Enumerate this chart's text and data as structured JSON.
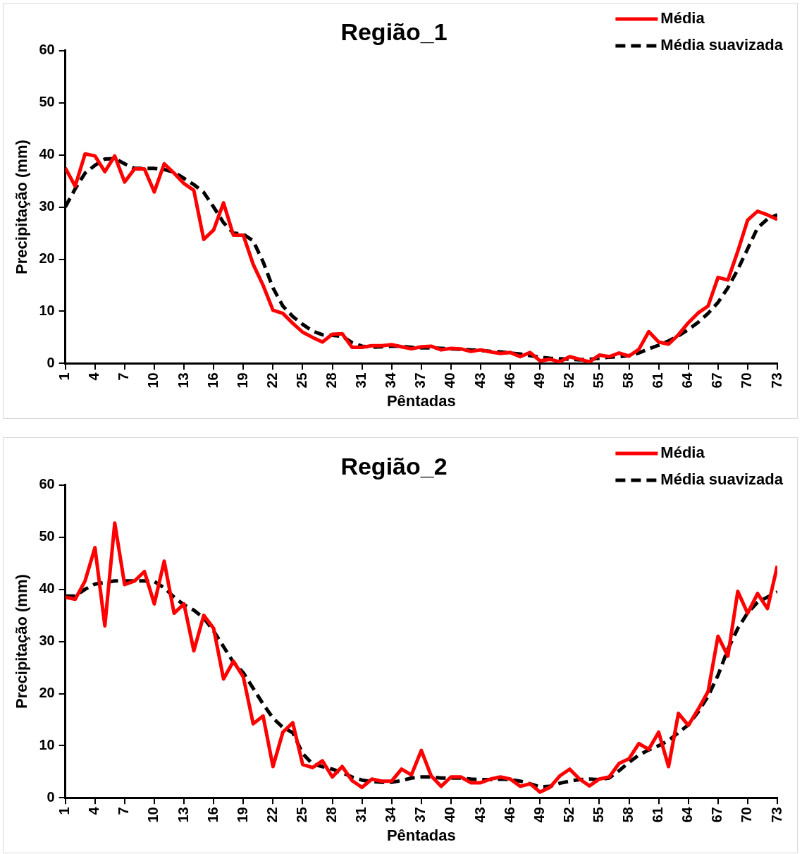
{
  "chart_data": [
    {
      "type": "line",
      "title": "Região_1",
      "xlabel": "Pêntadas",
      "ylabel": "Precipitação (mm)",
      "x": [
        1,
        2,
        3,
        4,
        5,
        6,
        7,
        8,
        9,
        10,
        11,
        12,
        13,
        14,
        15,
        16,
        17,
        18,
        19,
        20,
        21,
        22,
        23,
        24,
        25,
        26,
        27,
        28,
        29,
        30,
        31,
        32,
        33,
        34,
        35,
        36,
        37,
        38,
        39,
        40,
        41,
        42,
        43,
        44,
        45,
        46,
        47,
        48,
        49,
        50,
        51,
        52,
        53,
        54,
        55,
        56,
        57,
        58,
        59,
        60,
        61,
        62,
        63,
        64,
        65,
        66,
        67,
        68,
        69,
        70,
        71,
        72,
        73
      ],
      "xlim": [
        1,
        73
      ],
      "xticks": [
        1,
        4,
        7,
        10,
        13,
        16,
        19,
        22,
        25,
        28,
        31,
        34,
        37,
        40,
        43,
        46,
        49,
        52,
        55,
        58,
        61,
        64,
        67,
        70,
        73
      ],
      "ylim": [
        0,
        60
      ],
      "yticks": [
        0,
        10,
        20,
        30,
        40,
        50,
        60
      ],
      "grid": false,
      "legend": "top right",
      "series": [
        {
          "name": "Média",
          "color": "#ff0000",
          "line_style": "solid",
          "values": [
            37.5,
            34,
            40.2,
            39.8,
            36.8,
            39.8,
            34.8,
            37.3,
            37.3,
            32.9,
            38.3,
            36.5,
            34.5,
            33.2,
            23.8,
            25.6,
            30.8,
            24.6,
            24.6,
            19,
            15,
            10.2,
            9.6,
            7.7,
            6,
            5,
            4.1,
            5.6,
            5.7,
            3.1,
            3.1,
            3.4,
            3.4,
            3.6,
            3.2,
            2.8,
            3.2,
            3.3,
            2.6,
            2.9,
            2.8,
            2.3,
            2.6,
            2.2,
            1.9,
            2.1,
            1.3,
            2.1,
            0.5,
            0.8,
            0.3,
            1.3,
            0.8,
            0.3,
            1.6,
            1.3,
            2,
            1.4,
            2.7,
            6.1,
            4.1,
            3.7,
            5.5,
            7.8,
            9.7,
            11,
            16.5,
            16,
            21.5,
            27.5,
            29.2,
            28.5,
            27.6
          ]
        },
        {
          "name": "Média suavizada",
          "color": "#000000",
          "line_style": "dashed",
          "values": [
            30,
            33.5,
            36.5,
            38,
            39.2,
            39.3,
            38.3,
            37.4,
            37.4,
            37.4,
            37.2,
            36.7,
            35.5,
            34.3,
            32.8,
            30,
            27,
            25,
            24.8,
            23.5,
            19.5,
            14.5,
            11,
            9,
            7.5,
            6.2,
            5.5,
            5.4,
            5.2,
            4,
            3.3,
            3.1,
            3.2,
            3.3,
            3.3,
            3.1,
            3,
            3,
            2.9,
            2.8,
            2.7,
            2.6,
            2.5,
            2.3,
            2.2,
            2,
            1.8,
            1.5,
            1.2,
            1,
            0.9,
            0.8,
            0.7,
            0.8,
            1,
            1.2,
            1.3,
            1.5,
            2,
            2.8,
            3.5,
            4.3,
            5.3,
            6.5,
            7.9,
            9.6,
            11.7,
            14.5,
            18,
            22,
            26,
            27.7,
            28.5
          ]
        }
      ]
    },
    {
      "type": "line",
      "title": "Região_2",
      "xlabel": "Pêntadas",
      "ylabel": "Precipitação (mm)",
      "x": [
        1,
        2,
        3,
        4,
        5,
        6,
        7,
        8,
        9,
        10,
        11,
        12,
        13,
        14,
        15,
        16,
        17,
        18,
        19,
        20,
        21,
        22,
        23,
        24,
        25,
        26,
        27,
        28,
        29,
        30,
        31,
        32,
        33,
        34,
        35,
        36,
        37,
        38,
        39,
        40,
        41,
        42,
        43,
        44,
        45,
        46,
        47,
        48,
        49,
        50,
        51,
        52,
        53,
        54,
        55,
        56,
        57,
        58,
        59,
        60,
        61,
        62,
        63,
        64,
        65,
        66,
        67,
        68,
        69,
        70,
        71,
        72,
        73
      ],
      "xlim": [
        1,
        73
      ],
      "xticks": [
        1,
        4,
        7,
        10,
        13,
        16,
        19,
        22,
        25,
        28,
        31,
        34,
        37,
        40,
        43,
        46,
        49,
        52,
        55,
        58,
        61,
        64,
        67,
        70,
        73
      ],
      "ylim": [
        0,
        60
      ],
      "yticks": [
        0,
        10,
        20,
        30,
        40,
        50,
        60
      ],
      "grid": false,
      "legend": "top right",
      "series": [
        {
          "name": "Média",
          "color": "#ff0000",
          "line_style": "solid",
          "values": [
            38.5,
            38.1,
            41.6,
            48,
            33,
            52.7,
            40.9,
            41.6,
            43.4,
            37.2,
            45.4,
            35.4,
            37.2,
            28.2,
            35,
            32.5,
            22.8,
            26.2,
            23.2,
            14.2,
            15.7,
            6,
            12.6,
            14.4,
            6.4,
            5.8,
            7.1,
            4,
            6,
            3.3,
            2,
            3.6,
            3.2,
            3.2,
            5.5,
            4.4,
            9.1,
            4.2,
            2.2,
            4,
            4,
            2.9,
            2.9,
            3.6,
            4,
            3.6,
            2.2,
            2.7,
            1.1,
            2,
            4.2,
            5.5,
            3.6,
            2.3,
            3.6,
            4,
            6.6,
            7.5,
            10.4,
            9.3,
            12.6,
            6,
            16.2,
            13.9,
            17,
            20.4,
            31,
            27.2,
            39.6,
            35.4,
            39.2,
            36.3,
            44.5
          ]
        },
        {
          "name": "Média suavizada",
          "color": "#000000",
          "line_style": "dashed",
          "values": [
            38.7,
            38.7,
            40,
            41,
            41.3,
            41.6,
            41.6,
            41.6,
            41.6,
            41.5,
            40.3,
            38.5,
            37,
            36,
            34.5,
            32,
            29,
            26,
            24,
            21,
            18,
            15.3,
            13.5,
            12.5,
            8.5,
            6.5,
            6,
            5.5,
            4.8,
            4,
            3.4,
            3.1,
            3,
            3,
            3.3,
            3.8,
            4,
            4,
            3.8,
            3.8,
            3.8,
            3.6,
            3.5,
            3.5,
            3.6,
            3.5,
            3.2,
            2.7,
            2.1,
            2.2,
            2.8,
            3.2,
            3.5,
            3.6,
            3.5,
            3.8,
            5.2,
            6.8,
            8.2,
            9.2,
            10,
            11,
            12.5,
            14,
            16.5,
            19.5,
            23.5,
            28.5,
            32.5,
            35.5,
            37.5,
            38.5,
            39.5
          ]
        }
      ]
    }
  ]
}
